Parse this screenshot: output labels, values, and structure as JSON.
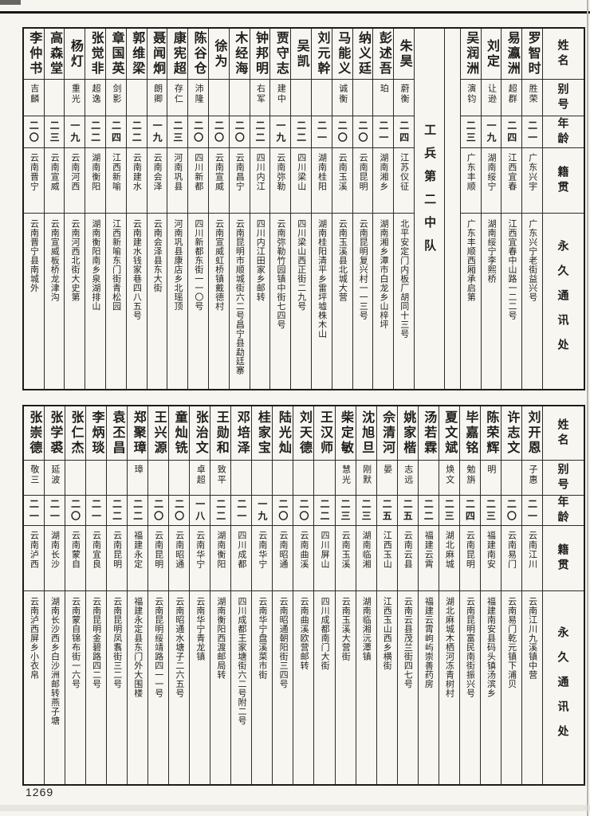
{
  "colors": {
    "ink": "#1f1f1f",
    "paper": "#f7f5f0",
    "border": "#2b2b2b"
  },
  "page_number": "1269",
  "column_headers": {
    "name": "姓名",
    "byname": "别号",
    "age": "年龄",
    "native_place": "籍贯",
    "address": "永久通讯处"
  },
  "tables": [
    {
      "id": "top",
      "columns": [
        {
          "type": "person",
          "name": "罗智时",
          "byname": "胜荣",
          "age": "二一",
          "native_place": "广东兴宇",
          "address": "广东兴宁老街益兴号"
        },
        {
          "type": "person",
          "name": "易瀛洲",
          "byname": "超群",
          "age": "二四",
          "native_place": "江西宜春",
          "address": "江西宜春中山路一二二号"
        },
        {
          "type": "person",
          "name": "刘定",
          "byname": "让逊",
          "age": "一九",
          "native_place": "湖南绥宁",
          "address": "湖南绥宁李熙桥"
        },
        {
          "type": "person",
          "name": "吴润洲",
          "byname": "演钧",
          "age": "二三",
          "native_place": "广东丰顺",
          "address": "广东丰顺西厢承启第"
        },
        {
          "type": "spacer"
        },
        {
          "type": "section",
          "label": "工兵第二中队"
        },
        {
          "type": "person",
          "name": "朱昊",
          "byname": "蔚衡",
          "age": "二四",
          "native_place": "江苏仪征",
          "address": "北平安定门内板厂胡同十三号"
        },
        {
          "type": "person",
          "name": "彭述吾",
          "byname": "珀",
          "age": "二一",
          "native_place": "湖南湘乡",
          "address": "湖南湘乡潭市白龙乡山梓坪"
        },
        {
          "type": "person",
          "name": "纳义廷",
          "byname": "",
          "age": "二〇",
          "native_place": "云南昆明",
          "address": "云南昆明复兴村一一三号"
        },
        {
          "type": "person",
          "name": "马能义",
          "byname": "诚衡",
          "age": "二〇",
          "native_place": "云南玉溪",
          "address": "云南玉溪县北城大营"
        },
        {
          "type": "person",
          "name": "刘元幹",
          "byname": "",
          "age": "二一",
          "native_place": "湖南桂阳",
          "address": "湖南桂阳清平乡雷坪墟株木山"
        },
        {
          "type": "person",
          "name": "吴凯",
          "byname": "",
          "age": "二二",
          "native_place": "四川梁山",
          "address": "四川梁山西正街二九号"
        },
        {
          "type": "person",
          "name": "贾守志",
          "byname": "建中",
          "age": "一九",
          "native_place": "云南弥勒",
          "address": "云南弥勒竹园镇中街七四号"
        },
        {
          "type": "person",
          "name": "钟邦明",
          "byname": "右军",
          "age": "二二",
          "native_place": "四川内江",
          "address": "四川内江田家乡邮转"
        },
        {
          "type": "person",
          "name": "木经海",
          "byname": "",
          "age": "二〇",
          "native_place": "云南昌宁",
          "address": "云南昆明市顺城街六二号昌宁县勐廷寨"
        },
        {
          "type": "person",
          "name": "徐为",
          "byname": "",
          "age": "二〇",
          "native_place": "云南宣威",
          "address": "云南宣威虹桥镇戴德村"
        },
        {
          "type": "person",
          "name": "陈谷仓",
          "byname": "沛隆",
          "age": "二〇",
          "native_place": "四川新都",
          "address": "四川新都东街一一〇号"
        },
        {
          "type": "person",
          "name": "康宪超",
          "byname": "存仁",
          "age": "二三",
          "native_place": "河南巩县",
          "address": "河南巩县康店乡北瑶顶"
        },
        {
          "type": "person",
          "name": "聂闻炯",
          "byname": "朗卿",
          "age": "一九",
          "native_place": "云南会泽",
          "address": "云南会泽县东大街"
        },
        {
          "type": "person",
          "name": "郭维梁",
          "byname": "",
          "age": "二二",
          "native_place": "云南建水",
          "address": "云南建水钱家巷四八五号"
        },
        {
          "type": "person",
          "name": "章国英",
          "byname": "剑影",
          "age": "二四",
          "native_place": "江西新喻",
          "address": "江西新喻东门街青松园"
        },
        {
          "type": "person",
          "name": "张觉非",
          "byname": "超逸",
          "age": "二二",
          "native_place": "湖南衡阳",
          "address": "湖南衡阳南乡泉湖排山"
        },
        {
          "type": "person",
          "name": "杨灯",
          "byname": "重光",
          "age": "一九",
          "native_place": "云南河西",
          "address": "云南河西北街大史第"
        },
        {
          "type": "person",
          "name": "高森堂",
          "byname": "",
          "age": "二三",
          "native_place": "云南宣威",
          "address": "云南宣威板桥龙津沟"
        },
        {
          "type": "person",
          "name": "李仲书",
          "byname": "吉麟",
          "age": "二〇",
          "native_place": "云南晋宁",
          "address": "云南晋宁县南城外"
        }
      ]
    },
    {
      "id": "bottom",
      "columns": [
        {
          "type": "person",
          "name": "刘开恩",
          "byname": "子惠",
          "age": "二一",
          "native_place": "云南江川",
          "address": "云南江川九溪镇中营"
        },
        {
          "type": "person",
          "name": "许志文",
          "byname": "",
          "age": "二〇",
          "native_place": "云南易门",
          "address": "云南易门乾元镇下浦贝"
        },
        {
          "type": "person",
          "name": "陈荣辉",
          "byname": "明",
          "age": "二三",
          "native_place": "福建南安",
          "address": "福建南安县码头镇汤滨乡"
        },
        {
          "type": "person",
          "name": "毕嘉铭",
          "byname": "勉旃",
          "age": "二四",
          "native_place": "云南昆明",
          "address": "云南昆明富民南街振兴号"
        },
        {
          "type": "person",
          "name": "夏文斌",
          "byname": "焕文",
          "age": "二三",
          "native_place": "湖北麻城",
          "address": "湖北麻城木栖河冻青树村"
        },
        {
          "type": "person",
          "name": "汤若霖",
          "byname": "",
          "age": "二二",
          "native_place": "福建云霄",
          "address": "福建云霄岣屿崇善药房"
        },
        {
          "type": "person",
          "name": "姚家楷",
          "byname": "志远",
          "age": "二五",
          "native_place": "云南云县",
          "address": "云南云县茂兰街四七号"
        },
        {
          "type": "person",
          "name": "佘清河",
          "byname": "晏",
          "age": "二五",
          "native_place": "江西玉山",
          "address": "江西玉山西乡横街"
        },
        {
          "type": "person",
          "name": "沈旭旦",
          "byname": "刚默",
          "age": "二三",
          "native_place": "湖南临湘",
          "address": "湖南临湘沅潭镇"
        },
        {
          "type": "person",
          "name": "柴定敏",
          "byname": "慧光",
          "age": "二三",
          "native_place": "云南玉溪",
          "address": "云南玉溪大营街"
        },
        {
          "type": "person",
          "name": "王汉师",
          "byname": "",
          "age": "二二",
          "native_place": "四川屏山",
          "address": "四川成都南门大街"
        },
        {
          "type": "person",
          "name": "刘天德",
          "byname": "",
          "age": "二〇",
          "native_place": "云南曲溪",
          "address": "云南曲溪欧营邮转"
        },
        {
          "type": "person",
          "name": "陆光灿",
          "byname": "",
          "age": "二〇",
          "native_place": "云南昭通",
          "address": "云南昭通朝阳街三四号"
        },
        {
          "type": "person",
          "name": "桂家宝",
          "byname": "",
          "age": "一九",
          "native_place": "云南华宁",
          "address": "云南华宁盘溪菜市街"
        },
        {
          "type": "person",
          "name": "邓培泽",
          "byname": "",
          "age": "二一",
          "native_place": "四川成都",
          "address": "四川成都王家塘街六二号附二号"
        },
        {
          "type": "person",
          "name": "王勋和",
          "byname": "致平",
          "age": "二二",
          "native_place": "湖南衡阳",
          "address": "湖南衡阳西渡邮局转"
        },
        {
          "type": "person",
          "name": "张治文",
          "byname": "卓超",
          "age": "一八",
          "native_place": "云南华宁",
          "address": "云南华宁青龙镇"
        },
        {
          "type": "person",
          "name": "童灿铣",
          "byname": "",
          "age": "二〇",
          "native_place": "云南昭通",
          "address": "云南昭通水塘子二六五号"
        },
        {
          "type": "person",
          "name": "王兴源",
          "byname": "",
          "age": "二〇",
          "native_place": "云南昆明",
          "address": "云南昆明绥靖路四一一号"
        },
        {
          "type": "person",
          "name": "郑聚璋",
          "byname": "璋",
          "age": "二二",
          "native_place": "福建永定",
          "address": "福建永定县东门外大围楼"
        },
        {
          "type": "person",
          "name": "袁丕昌",
          "byname": "",
          "age": "二二",
          "native_place": "云南昆明",
          "address": "云南昆明凤翥街三二号"
        },
        {
          "type": "person",
          "name": "李炳琰",
          "byname": "",
          "age": "二一",
          "native_place": "云南宜良",
          "address": "云南昆明金碧路四二号"
        },
        {
          "type": "person",
          "name": "张仁杰",
          "byname": "",
          "age": "二〇",
          "native_place": "云南蒙自",
          "address": "云南蒙自锦布街一六号"
        },
        {
          "type": "person",
          "name": "张学裘",
          "byname": "延波",
          "age": "二一",
          "native_place": "湖南长沙",
          "address": "湖南长沙西乡白沙洲邮转燕子塘"
        },
        {
          "type": "person",
          "name": "张崇德",
          "byname": "敬三",
          "age": "二一",
          "native_place": "云南泸西",
          "address": "云南泸西屏乡小衣帛"
        }
      ]
    }
  ]
}
